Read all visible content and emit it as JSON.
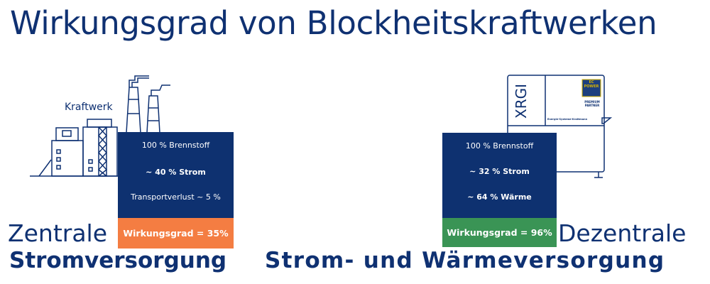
{
  "title": "Wirkungsgrad von Blockheitskraftwerken",
  "left": {
    "illustration_label": "Kraftwerk",
    "lines": [
      "100 % Brennstoff",
      "~ 40 % Strom",
      "Transportverlust ~ 5 %"
    ],
    "efficiency": "Wirkungsgrad = 35%",
    "heading_light": "Zentrale",
    "heading_bold": "Stromversorgung"
  },
  "right": {
    "unit_label": "XRGI",
    "logo_text": "EC POWER",
    "logo_sub": "PREMIUM PARTNER",
    "brand_text": "Energie-Systeme-Krattmann",
    "lines": [
      "100 % Brennstoff",
      "~ 32 % Strom",
      "~ 64 % Wärme"
    ],
    "efficiency": "Wirkungsgrad = 96%",
    "heading_light": "Dezentrale",
    "heading_bold": "Strom- und Wärmeversorgung"
  },
  "colors": {
    "navy": "#0e3170",
    "orange": "#f47d42",
    "green": "#3a9455"
  }
}
